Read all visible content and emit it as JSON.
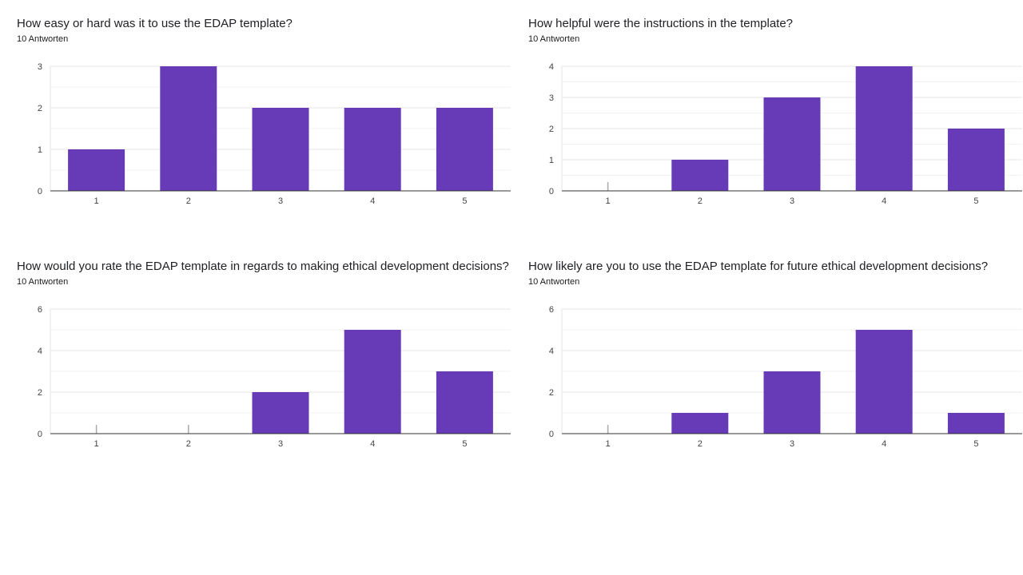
{
  "chart_data": [
    {
      "type": "bar",
      "title": "How easy or hard was it to use the EDAP template?",
      "subtitle": "10 Antworten",
      "categories": [
        "1",
        "2",
        "3",
        "4",
        "5"
      ],
      "values": [
        1,
        3,
        2,
        2,
        2
      ],
      "ylim": [
        0,
        3
      ],
      "yticks": [
        "0",
        "1",
        "2",
        "3"
      ],
      "grid": true
    },
    {
      "type": "bar",
      "title": "How helpful were the instructions in the template?",
      "subtitle": "10 Antworten",
      "categories": [
        "1",
        "2",
        "3",
        "4",
        "5"
      ],
      "values": [
        0,
        1,
        3,
        4,
        2
      ],
      "ylim": [
        0,
        4
      ],
      "yticks": [
        "0",
        "1",
        "2",
        "3",
        "4"
      ],
      "grid": true
    },
    {
      "type": "bar",
      "title": "How would you rate the EDAP template in regards to making ethical development decisions?",
      "subtitle": "10 Antworten",
      "categories": [
        "1",
        "2",
        "3",
        "4",
        "5"
      ],
      "values": [
        0,
        0,
        2,
        5,
        3
      ],
      "ylim": [
        0,
        6
      ],
      "yticks": [
        "0",
        "2",
        "4",
        "6"
      ],
      "grid": true
    },
    {
      "type": "bar",
      "title": "How likely are you to use the EDAP template for future ethical development decisions?",
      "subtitle": "10 Antworten",
      "categories": [
        "1",
        "2",
        "3",
        "4",
        "5"
      ],
      "values": [
        0,
        1,
        3,
        5,
        1
      ],
      "ylim": [
        0,
        6
      ],
      "yticks": [
        "0",
        "2",
        "4",
        "6"
      ],
      "grid": true
    }
  ],
  "colors": {
    "bar": "#673ab7",
    "gridline": "#e6e6e6",
    "axis": "#333333",
    "zero_marker": "#aaaaaa"
  }
}
